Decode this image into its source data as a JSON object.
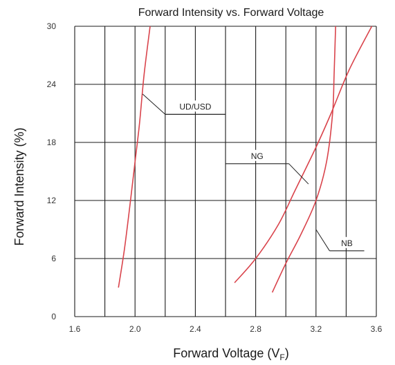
{
  "chart_data": {
    "type": "line",
    "title": "Forward Intensity vs. Forward Voltage",
    "xlabel_main": "Forward Voltage (V",
    "xlabel_sub": "F",
    "xlabel_close": ")",
    "ylabel": "Forward Intensity (%)",
    "xlim": [
      1.6,
      3.6
    ],
    "ylim": [
      0,
      30
    ],
    "x_ticks": [
      1.6,
      2.0,
      2.4,
      2.8,
      3.2,
      3.6
    ],
    "x_tick_labels": [
      "1.6",
      "2.0",
      "2.4",
      "2.8",
      "3.2",
      "3.6"
    ],
    "y_ticks": [
      0,
      6,
      12,
      18,
      24,
      30
    ],
    "y_tick_labels": [
      "0",
      "6",
      "12",
      "18",
      "24",
      "30"
    ],
    "x_grid_lines": [
      1.6,
      1.8,
      2.0,
      2.2,
      2.4,
      2.6,
      2.8,
      3.0,
      3.2,
      3.4,
      3.6
    ],
    "grid": true,
    "line_color": "#d9434b",
    "grid_color": "#1a1a1a",
    "series": [
      {
        "name": "UD/USD",
        "points": [
          [
            1.89,
            3
          ],
          [
            1.93,
            7
          ],
          [
            1.97,
            12
          ],
          [
            2.0,
            16
          ],
          [
            2.03,
            20
          ],
          [
            2.06,
            25
          ],
          [
            2.1,
            30
          ]
        ],
        "callout": {
          "label": "UD/USD",
          "anchor": [
            2.05,
            23
          ],
          "shelf_y": 20.9,
          "shelf_x": [
            2.2,
            2.6
          ]
        }
      },
      {
        "name": "NG",
        "points": [
          [
            2.66,
            3.5
          ],
          [
            2.8,
            6
          ],
          [
            2.95,
            9.5
          ],
          [
            3.06,
            13
          ],
          [
            3.2,
            17.5
          ],
          [
            3.3,
            21
          ],
          [
            3.42,
            25.5
          ],
          [
            3.57,
            30
          ]
        ],
        "callout": {
          "label": "NG",
          "anchor": [
            3.15,
            13.7
          ],
          "shelf_y": 15.8,
          "shelf_x": [
            2.6,
            3.02
          ]
        }
      },
      {
        "name": "NB",
        "points": [
          [
            2.91,
            2.5
          ],
          [
            3.0,
            5.5
          ],
          [
            3.1,
            8.5
          ],
          [
            3.2,
            12
          ],
          [
            3.27,
            16
          ],
          [
            3.31,
            21
          ],
          [
            3.32,
            25
          ],
          [
            3.33,
            30
          ]
        ],
        "callout": {
          "label": "NB",
          "anchor": [
            3.2,
            9
          ],
          "shelf_y": 6.8,
          "shelf_x": [
            3.29,
            3.52
          ]
        }
      }
    ]
  }
}
